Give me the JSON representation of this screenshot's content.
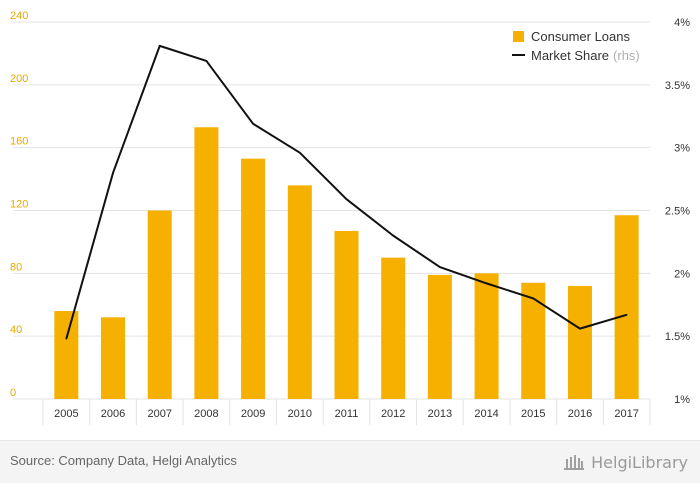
{
  "chart_data": {
    "type": "bar",
    "categories": [
      "2005",
      "2006",
      "2007",
      "2008",
      "2009",
      "2010",
      "2011",
      "2012",
      "2013",
      "2014",
      "2015",
      "2016",
      "2017"
    ],
    "series": [
      {
        "name": "Consumer Loans",
        "type": "bar",
        "axis": "left",
        "color": "#f5b000",
        "values": [
          56,
          52,
          120,
          173,
          153,
          136,
          107,
          90,
          79,
          80,
          74,
          72,
          117
        ]
      },
      {
        "name": "Market Share",
        "suffix": "(rhs)",
        "type": "line",
        "axis": "right",
        "color": "#111111",
        "values": [
          1.48,
          2.8,
          3.81,
          3.69,
          3.19,
          2.96,
          2.59,
          2.3,
          2.05,
          1.92,
          1.8,
          1.56,
          1.67
        ]
      }
    ],
    "left_axis": {
      "ylim": [
        0,
        240
      ],
      "ticks": [
        "0",
        "40",
        "80",
        "120",
        "160",
        "200",
        "240"
      ],
      "tick_values": [
        0,
        40,
        80,
        120,
        160,
        200,
        240
      ],
      "color": "#e8a800"
    },
    "right_axis": {
      "ylim": [
        1,
        4
      ],
      "ticks": [
        "1%",
        "1.5%",
        "2%",
        "2.5%",
        "3%",
        "3.5%",
        "4%"
      ],
      "tick_values": [
        1,
        1.5,
        2,
        2.5,
        3,
        3.5,
        4
      ]
    },
    "grid": true,
    "legend": "top-right"
  },
  "footer": {
    "source": "Source: Company Data, Helgi Analytics",
    "brand": "HelgiLibrary"
  }
}
